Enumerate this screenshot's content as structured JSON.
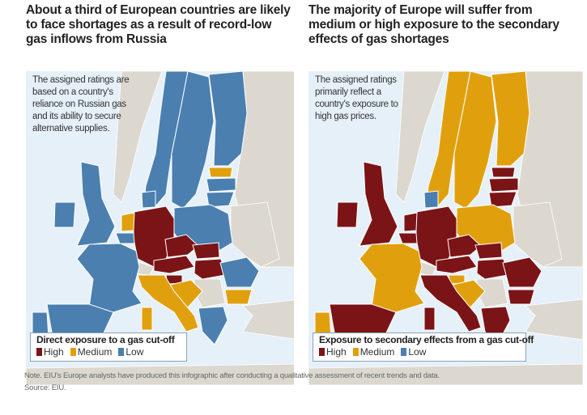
{
  "colors": {
    "high": "#7b1416",
    "medium": "#e0a00e",
    "low": "#4a7fb0",
    "sea": "#e6f0f8",
    "land": "#dcd8cf"
  },
  "left": {
    "title": "About a third of European countries  are likely to face shortages as a result of record-low gas inflows from Russia",
    "annotation": "The assigned ratings are based on a country's reliance on Russian gas and its ability to secure alternative supplies.",
    "legend": {
      "title": "Direct exposure to a gas cut-off",
      "high": "High",
      "medium": "Medium",
      "low": "Low"
    },
    "ratings": {
      "norway": "low",
      "sweden": "low",
      "finland": "low",
      "estonia": "medium",
      "latvia": "low",
      "lithuania": "low",
      "poland": "low",
      "germany": "high",
      "netherlands": "medium",
      "belgium": "low",
      "uk": "low",
      "ireland": "low",
      "france": "low",
      "spain": "low",
      "portugal": "low",
      "austria": "high",
      "czechia": "high",
      "slovakia": "high",
      "hungary": "high",
      "slovenia": "high",
      "croatia": "medium",
      "italy": "medium",
      "sicily": "medium",
      "sardinia": "medium",
      "romania": "low",
      "bulgaria": "medium",
      "greece": "low",
      "denmark": "low"
    }
  },
  "right": {
    "title": "The majority of Europe will suffer from medium or high exposure to the  secondary effects of gas shortages",
    "annotation": "The assigned ratings primarily reflect a country's exposure to high gas prices.",
    "legend": {
      "title": "Exposure to secondary effects from a gas cut-off",
      "high": "High",
      "medium": "Medium",
      "low": "Low"
    },
    "ratings": {
      "norway": "medium",
      "sweden": "medium",
      "finland": "medium",
      "estonia": "high",
      "latvia": "high",
      "lithuania": "high",
      "poland": "medium",
      "germany": "high",
      "netherlands": "high",
      "belgium": "high",
      "uk": "high",
      "ireland": "high",
      "france": "medium",
      "spain": "high",
      "portugal": "medium",
      "austria": "high",
      "czechia": "high",
      "slovakia": "high",
      "hungary": "high",
      "slovenia": "medium",
      "croatia": "medium",
      "italy": "high",
      "sicily": "high",
      "sardinia": "high",
      "romania": "high",
      "bulgaria": "high",
      "greece": "high",
      "denmark": "low"
    }
  },
  "note": "Note. EIU's Europe analysts have produced this infographic after conducting a qualitative assessment of recent trends and data.",
  "source": "Source: EIU."
}
